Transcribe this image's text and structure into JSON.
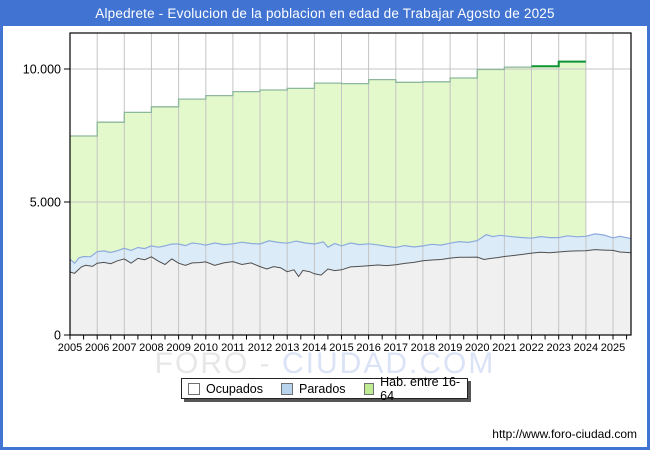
{
  "window": {
    "title": "Alpedrete - Evolucion de la poblacion en edad de Trabajar Agosto de 2025"
  },
  "watermark": {
    "part1": "FORO - ",
    "part2": "CIUDAD.COM"
  },
  "footer": {
    "url": "http://www.foro-ciudad.com"
  },
  "legend": {
    "items": [
      {
        "label": "Ocupados",
        "swatch": "#ffffff"
      },
      {
        "label": "Parados",
        "swatch": "#b8d3ee"
      },
      {
        "label": "Hab. entre 16-64",
        "swatch": "#bfec92"
      }
    ]
  },
  "colors": {
    "frame_blue": "#4173d2",
    "hab_fill": "#e4f9cb",
    "hab_line": "#8cb89c",
    "hab_highlight": "#0c9333",
    "parados_fill": "#dcebf8",
    "parados_line": "#8cabdc",
    "ocupados_fill": "#f0f0f0",
    "ocupados_line": "#4f4f4f",
    "grid": "#c4c4c4",
    "axis": "#000000"
  },
  "chart_data": {
    "type": "area",
    "title": "Alpedrete - Evolucion de la poblacion en edad de Trabajar Agosto de 2025",
    "xlabel": "",
    "ylabel": "",
    "grid": true,
    "legend_position": "bottom",
    "ylim": [
      0,
      11350
    ],
    "x_range_years": [
      2005,
      2025.67
    ],
    "y_ticks": [
      {
        "value": 0,
        "label": "0"
      },
      {
        "value": 5000,
        "label": "5.000"
      },
      {
        "value": 10000,
        "label": "10.000"
      }
    ],
    "x_tick_labels": [
      "2005",
      "2006",
      "2007",
      "2008",
      "2009",
      "2010",
      "2011",
      "2012",
      "2013",
      "2014",
      "2015",
      "2016",
      "2017",
      "2018",
      "2019",
      "2020",
      "2021",
      "2022",
      "2023",
      "2024",
      "2025"
    ],
    "highlight_from_year": 2022,
    "series": [
      {
        "id": "hab",
        "name": "Hab. entre 16-64",
        "type": "step-area",
        "years": [
          2005,
          2006,
          2007,
          2008,
          2009,
          2010,
          2011,
          2012,
          2013,
          2014,
          2015,
          2016,
          2017,
          2018,
          2019,
          2020,
          2021,
          2022,
          2023
        ],
        "values": [
          7480,
          8000,
          8370,
          8580,
          8870,
          9000,
          9150,
          9210,
          9270,
          9470,
          9450,
          9600,
          9500,
          9520,
          9660,
          9980,
          10070,
          10100,
          10280
        ]
      },
      {
        "id": "parados",
        "name": "Parados",
        "type": "area-stacked-on-ocupados",
        "note": "points are [year_fraction, ocupados+parados]",
        "points": [
          [
            2005.0,
            2850
          ],
          [
            2005.17,
            2700
          ],
          [
            2005.33,
            2900
          ],
          [
            2005.5,
            2950
          ],
          [
            2005.75,
            2940
          ],
          [
            2006.0,
            3130
          ],
          [
            2006.25,
            3160
          ],
          [
            2006.5,
            3100
          ],
          [
            2006.75,
            3170
          ],
          [
            2007.0,
            3260
          ],
          [
            2007.25,
            3180
          ],
          [
            2007.5,
            3290
          ],
          [
            2007.75,
            3250
          ],
          [
            2008.0,
            3350
          ],
          [
            2008.25,
            3300
          ],
          [
            2008.5,
            3350
          ],
          [
            2008.75,
            3420
          ],
          [
            2009.0,
            3420
          ],
          [
            2009.25,
            3360
          ],
          [
            2009.5,
            3460
          ],
          [
            2009.75,
            3430
          ],
          [
            2010.0,
            3380
          ],
          [
            2010.33,
            3460
          ],
          [
            2010.67,
            3400
          ],
          [
            2011.0,
            3430
          ],
          [
            2011.33,
            3490
          ],
          [
            2011.67,
            3440
          ],
          [
            2012.0,
            3420
          ],
          [
            2012.33,
            3540
          ],
          [
            2012.67,
            3480
          ],
          [
            2013.0,
            3450
          ],
          [
            2013.33,
            3530
          ],
          [
            2013.67,
            3460
          ],
          [
            2014.0,
            3420
          ],
          [
            2014.33,
            3500
          ],
          [
            2014.5,
            3300
          ],
          [
            2014.75,
            3440
          ],
          [
            2015.0,
            3350
          ],
          [
            2015.33,
            3460
          ],
          [
            2015.67,
            3400
          ],
          [
            2016.0,
            3430
          ],
          [
            2016.33,
            3390
          ],
          [
            2016.67,
            3330
          ],
          [
            2017.0,
            3290
          ],
          [
            2017.33,
            3360
          ],
          [
            2017.67,
            3310
          ],
          [
            2018.0,
            3350
          ],
          [
            2018.33,
            3410
          ],
          [
            2018.67,
            3380
          ],
          [
            2019.0,
            3450
          ],
          [
            2019.33,
            3510
          ],
          [
            2019.67,
            3480
          ],
          [
            2020.0,
            3550
          ],
          [
            2020.33,
            3770
          ],
          [
            2020.58,
            3700
          ],
          [
            2020.83,
            3750
          ],
          [
            2021.0,
            3730
          ],
          [
            2021.33,
            3690
          ],
          [
            2021.67,
            3660
          ],
          [
            2022.0,
            3640
          ],
          [
            2022.33,
            3700
          ],
          [
            2022.67,
            3660
          ],
          [
            2023.0,
            3660
          ],
          [
            2023.33,
            3730
          ],
          [
            2023.67,
            3690
          ],
          [
            2024.0,
            3710
          ],
          [
            2024.33,
            3800
          ],
          [
            2024.67,
            3760
          ],
          [
            2025.0,
            3650
          ],
          [
            2025.25,
            3710
          ],
          [
            2025.67,
            3620
          ]
        ]
      },
      {
        "id": "ocupados",
        "name": "Ocupados",
        "type": "area",
        "points": [
          [
            2005.0,
            2370
          ],
          [
            2005.17,
            2320
          ],
          [
            2005.42,
            2560
          ],
          [
            2005.58,
            2620
          ],
          [
            2005.83,
            2580
          ],
          [
            2006.0,
            2700
          ],
          [
            2006.25,
            2730
          ],
          [
            2006.5,
            2680
          ],
          [
            2006.75,
            2790
          ],
          [
            2007.0,
            2860
          ],
          [
            2007.25,
            2700
          ],
          [
            2007.5,
            2880
          ],
          [
            2007.75,
            2830
          ],
          [
            2008.0,
            2940
          ],
          [
            2008.25,
            2780
          ],
          [
            2008.5,
            2650
          ],
          [
            2008.75,
            2860
          ],
          [
            2009.0,
            2700
          ],
          [
            2009.25,
            2620
          ],
          [
            2009.5,
            2710
          ],
          [
            2009.75,
            2720
          ],
          [
            2010.0,
            2750
          ],
          [
            2010.33,
            2620
          ],
          [
            2010.67,
            2710
          ],
          [
            2011.0,
            2760
          ],
          [
            2011.33,
            2650
          ],
          [
            2011.67,
            2710
          ],
          [
            2012.0,
            2570
          ],
          [
            2012.25,
            2480
          ],
          [
            2012.5,
            2570
          ],
          [
            2012.75,
            2530
          ],
          [
            2013.0,
            2380
          ],
          [
            2013.25,
            2450
          ],
          [
            2013.42,
            2200
          ],
          [
            2013.58,
            2430
          ],
          [
            2013.83,
            2380
          ],
          [
            2014.0,
            2300
          ],
          [
            2014.25,
            2250
          ],
          [
            2014.5,
            2480
          ],
          [
            2014.75,
            2420
          ],
          [
            2015.0,
            2450
          ],
          [
            2015.33,
            2560
          ],
          [
            2015.67,
            2580
          ],
          [
            2016.0,
            2600
          ],
          [
            2016.33,
            2630
          ],
          [
            2016.67,
            2610
          ],
          [
            2017.0,
            2640
          ],
          [
            2017.33,
            2690
          ],
          [
            2017.67,
            2730
          ],
          [
            2018.0,
            2790
          ],
          [
            2018.33,
            2820
          ],
          [
            2018.67,
            2840
          ],
          [
            2019.0,
            2890
          ],
          [
            2019.33,
            2920
          ],
          [
            2019.67,
            2920
          ],
          [
            2020.0,
            2930
          ],
          [
            2020.25,
            2840
          ],
          [
            2020.5,
            2880
          ],
          [
            2020.75,
            2910
          ],
          [
            2021.0,
            2950
          ],
          [
            2021.33,
            2990
          ],
          [
            2021.67,
            3030
          ],
          [
            2022.0,
            3080
          ],
          [
            2022.33,
            3110
          ],
          [
            2022.67,
            3090
          ],
          [
            2023.0,
            3120
          ],
          [
            2023.33,
            3150
          ],
          [
            2023.67,
            3160
          ],
          [
            2024.0,
            3170
          ],
          [
            2024.33,
            3210
          ],
          [
            2024.67,
            3190
          ],
          [
            2025.0,
            3180
          ],
          [
            2025.25,
            3120
          ],
          [
            2025.67,
            3090
          ]
        ]
      }
    ]
  }
}
